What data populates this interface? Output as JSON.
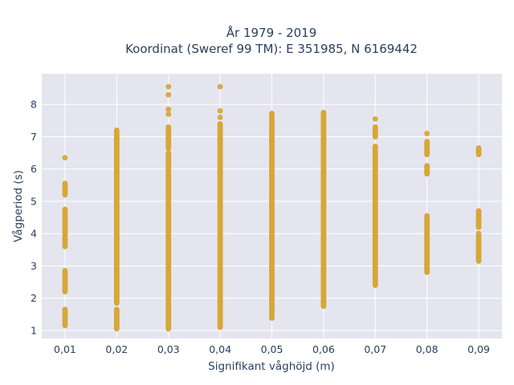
{
  "chart_data": {
    "type": "scatter",
    "title_line1": "År 1979 - 2019",
    "title_line2": "Koordinat (Sweref 99 TM): E 351985, N 6169442",
    "xlabel": "Signifikant våghöjd (m)",
    "ylabel": "Vågperiod (s)",
    "x_tick_labels": [
      "0,01",
      "0,02",
      "0,03",
      "0,04",
      "0,05",
      "0,06",
      "0,07",
      "0,08",
      "0,09"
    ],
    "y_ticks": [
      "1",
      "2",
      "3",
      "4",
      "5",
      "6",
      "7",
      "8"
    ],
    "xlim": [
      0.0055,
      0.0945
    ],
    "ylim": [
      0.75,
      8.95
    ],
    "grid": true,
    "marker_color": "#d4a020",
    "plot_bg": "#e5e5f0",
    "series": [
      {
        "x": 0.01,
        "ranges": [
          [
            1.15,
            1.65
          ],
          [
            2.2,
            2.85
          ],
          [
            3.6,
            3.9
          ],
          [
            4.0,
            4.75
          ],
          [
            5.2,
            5.55
          ]
        ],
        "points": [
          6.35
        ]
      },
      {
        "x": 0.02,
        "ranges": [
          [
            1.05,
            1.65
          ],
          [
            1.85,
            7.2
          ]
        ],
        "points": []
      },
      {
        "x": 0.03,
        "ranges": [
          [
            1.05,
            6.5
          ],
          [
            6.65,
            7.3
          ]
        ],
        "points": [
          7.7,
          7.85,
          8.3,
          8.55
        ]
      },
      {
        "x": 0.04,
        "ranges": [
          [
            1.1,
            7.4
          ]
        ],
        "points": [
          7.6,
          7.8,
          8.55
        ]
      },
      {
        "x": 0.05,
        "ranges": [
          [
            1.38,
            7.72
          ]
        ],
        "points": []
      },
      {
        "x": 0.06,
        "ranges": [
          [
            1.75,
            7.75
          ]
        ],
        "points": []
      },
      {
        "x": 0.07,
        "ranges": [
          [
            2.4,
            6.7
          ],
          [
            7.0,
            7.3
          ]
        ],
        "points": [
          7.55
        ]
      },
      {
        "x": 0.08,
        "ranges": [
          [
            2.8,
            4.55
          ],
          [
            5.85,
            6.1
          ],
          [
            6.45,
            6.85
          ]
        ],
        "points": [
          7.1
        ]
      },
      {
        "x": 0.09,
        "ranges": [
          [
            3.15,
            4.0
          ],
          [
            4.2,
            4.7
          ],
          [
            6.45,
            6.65
          ]
        ],
        "points": []
      }
    ]
  }
}
